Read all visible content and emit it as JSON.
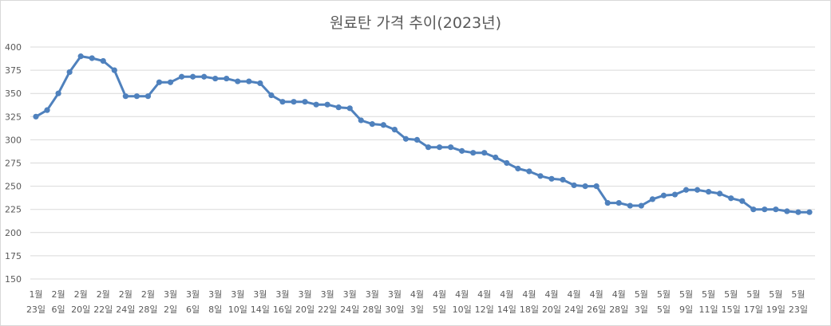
{
  "chart_data": {
    "type": "line",
    "title": "원료탄 가격 추이(2023년)",
    "xlabel": "",
    "ylabel": "",
    "ylim": [
      150,
      400
    ],
    "yticks": [
      150,
      175,
      200,
      225,
      250,
      275,
      300,
      325,
      350,
      375,
      400
    ],
    "grid": true,
    "legend": "none",
    "series_color": "#4f81bd",
    "tick_labels": [
      [
        "1월",
        "23일"
      ],
      [
        "2월",
        "6일"
      ],
      [
        "2월",
        "20일"
      ],
      [
        "2월",
        "22일"
      ],
      [
        "2월",
        "24일"
      ],
      [
        "2월",
        "28일"
      ],
      [
        "3월",
        "2일"
      ],
      [
        "3월",
        "6일"
      ],
      [
        "3월",
        "8일"
      ],
      [
        "3월",
        "10일"
      ],
      [
        "3월",
        "14일"
      ],
      [
        "3월",
        "16일"
      ],
      [
        "3월",
        "20일"
      ],
      [
        "3월",
        "22일"
      ],
      [
        "3월",
        "24일"
      ],
      [
        "3월",
        "28일"
      ],
      [
        "3월",
        "30일"
      ],
      [
        "4월",
        "3일"
      ],
      [
        "4월",
        "5일"
      ],
      [
        "4월",
        "10일"
      ],
      [
        "4월",
        "12일"
      ],
      [
        "4월",
        "14일"
      ],
      [
        "4월",
        "18일"
      ],
      [
        "4월",
        "20일"
      ],
      [
        "4월",
        "24일"
      ],
      [
        "4월",
        "26일"
      ],
      [
        "4월",
        "28일"
      ],
      [
        "5월",
        "3일"
      ],
      [
        "5월",
        "5일"
      ],
      [
        "5월",
        "9일"
      ],
      [
        "5월",
        "11일"
      ],
      [
        "5월",
        "15일"
      ],
      [
        "5월",
        "17일"
      ],
      [
        "5월",
        "19일"
      ],
      [
        "5월",
        "23일"
      ]
    ],
    "values": [
      325,
      332,
      350,
      373,
      390,
      388,
      385,
      375,
      347,
      347,
      347,
      362,
      362,
      368,
      368,
      368,
      366,
      366,
      363,
      363,
      361,
      348,
      341,
      341,
      341,
      338,
      338,
      335,
      334,
      321,
      317,
      316,
      311,
      301,
      300,
      292,
      292,
      292,
      288,
      286,
      286,
      281,
      275,
      269,
      266,
      261,
      258,
      257,
      251,
      250,
      250,
      232,
      232,
      229,
      229,
      236,
      240,
      241,
      246,
      246,
      244,
      242,
      237,
      234,
      225,
      225,
      225,
      223,
      222,
      222
    ]
  }
}
